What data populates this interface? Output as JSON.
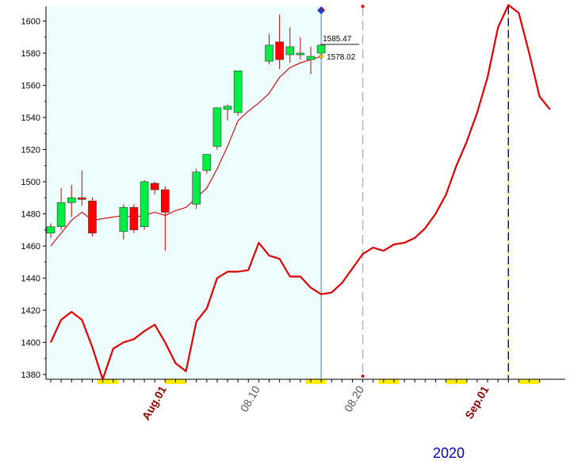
{
  "chart_data": {
    "type": "candlestick",
    "ylim": [
      1376,
      1610
    ],
    "yticks": [
      1380,
      1400,
      1420,
      1440,
      1460,
      1480,
      1500,
      1520,
      1540,
      1560,
      1580,
      1600
    ],
    "x_range_days": [
      0,
      47
    ],
    "x_labels": [
      {
        "text": "Aug.01",
        "day": 11,
        "color": "#8b0000",
        "bold": true
      },
      {
        "text": "08.10",
        "day": 20,
        "color": "#555555",
        "bold": false
      },
      {
        "text": "08.20",
        "day": 30,
        "color": "#555555",
        "bold": false
      },
      {
        "text": "Sep.01",
        "day": 42,
        "color": "#8b0000",
        "bold": true
      }
    ],
    "year_label": "2020",
    "year_color": "#0000cc",
    "highlight_span": [
      0,
      26
    ],
    "current_day": 26,
    "forecast_day": 30,
    "future_day": 44,
    "price_labels": [
      {
        "text": "1585.47",
        "value": 1585.47
      },
      {
        "text": "1578.02",
        "value": 1578.02
      }
    ],
    "weekend_markers": [
      [
        4.5,
        6.5
      ],
      [
        11,
        13
      ],
      [
        24.5,
        26.5
      ],
      [
        31.5,
        33.5
      ],
      [
        38,
        40
      ],
      [
        45,
        47
      ]
    ],
    "colors": {
      "up": "#00ee44",
      "down": "#ff0000",
      "ma": "#cc0000",
      "line": "#dd0000",
      "highlight": "#eefdfd",
      "marker": "#ffee00"
    },
    "candles": [
      {
        "day": 0,
        "open": 1468,
        "high": 1474,
        "low": 1465,
        "close": 1472
      },
      {
        "day": 1,
        "open": 1472,
        "high": 1496,
        "low": 1470,
        "close": 1487
      },
      {
        "day": 2,
        "open": 1487,
        "high": 1498,
        "low": 1478,
        "close": 1490
      },
      {
        "day": 3,
        "open": 1490,
        "high": 1507,
        "low": 1485,
        "close": 1489
      },
      {
        "day": 4,
        "open": 1488,
        "high": 1490,
        "low": 1466,
        "close": 1468
      },
      {
        "day": 7,
        "open": 1469,
        "high": 1486,
        "low": 1464,
        "close": 1484
      },
      {
        "day": 8,
        "open": 1484,
        "high": 1486,
        "low": 1468,
        "close": 1470
      },
      {
        "day": 9,
        "open": 1472,
        "high": 1501,
        "low": 1470,
        "close": 1500
      },
      {
        "day": 10,
        "open": 1499,
        "high": 1500,
        "low": 1492,
        "close": 1495
      },
      {
        "day": 11,
        "open": 1495,
        "high": 1497,
        "low": 1457,
        "close": 1481
      },
      {
        "day": 14,
        "open": 1486,
        "high": 1508,
        "low": 1483,
        "close": 1506
      },
      {
        "day": 15,
        "open": 1507,
        "high": 1517,
        "low": 1505,
        "close": 1517
      },
      {
        "day": 16,
        "open": 1522,
        "high": 1546,
        "low": 1520,
        "close": 1546
      },
      {
        "day": 17,
        "open": 1545,
        "high": 1548,
        "low": 1538,
        "close": 1547
      },
      {
        "day": 18,
        "open": 1543,
        "high": 1568,
        "low": 1541,
        "close": 1569
      },
      {
        "day": 21,
        "open": 1575,
        "high": 1592,
        "low": 1573,
        "close": 1585
      },
      {
        "day": 22,
        "open": 1587,
        "high": 1604,
        "low": 1570,
        "close": 1576
      },
      {
        "day": 23,
        "open": 1579,
        "high": 1596,
        "low": 1574,
        "close": 1584
      },
      {
        "day": 24,
        "open": 1579,
        "high": 1590,
        "low": 1576,
        "close": 1580
      },
      {
        "day": 25,
        "open": 1576,
        "high": 1584,
        "low": 1567,
        "close": 1578
      },
      {
        "day": 26,
        "open": 1580,
        "high": 1586,
        "low": 1577,
        "close": 1585
      }
    ],
    "moving_average": [
      [
        0,
        1460
      ],
      [
        1,
        1468
      ],
      [
        2,
        1476
      ],
      [
        3,
        1481
      ],
      [
        4,
        1476
      ],
      [
        5,
        1477
      ],
      [
        6,
        1478
      ],
      [
        7,
        1479
      ],
      [
        8,
        1478
      ],
      [
        9,
        1479
      ],
      [
        10,
        1481
      ],
      [
        11,
        1479
      ],
      [
        12,
        1482
      ],
      [
        13,
        1484
      ],
      [
        14,
        1490
      ],
      [
        15,
        1496
      ],
      [
        16,
        1508
      ],
      [
        17,
        1522
      ],
      [
        18,
        1538
      ],
      [
        19,
        1544
      ],
      [
        20,
        1549
      ],
      [
        21,
        1555
      ],
      [
        22,
        1565
      ],
      [
        23,
        1571
      ],
      [
        24,
        1574
      ],
      [
        25,
        1576
      ],
      [
        26,
        1578
      ]
    ],
    "forecast_line": [
      [
        0,
        1400
      ],
      [
        1,
        1414
      ],
      [
        2,
        1419
      ],
      [
        3,
        1414
      ],
      [
        4,
        1397
      ],
      [
        5,
        1377
      ],
      [
        6,
        1396
      ],
      [
        7,
        1400
      ],
      [
        8,
        1402
      ],
      [
        9,
        1407
      ],
      [
        10,
        1411
      ],
      [
        11,
        1400
      ],
      [
        12,
        1387
      ],
      [
        13,
        1382
      ],
      [
        14,
        1413
      ],
      [
        15,
        1421
      ],
      [
        16,
        1440
      ],
      [
        17,
        1444
      ],
      [
        18,
        1444
      ],
      [
        19,
        1445
      ],
      [
        20,
        1462
      ],
      [
        21,
        1454
      ],
      [
        22,
        1452
      ],
      [
        23,
        1441
      ],
      [
        24,
        1441
      ],
      [
        25,
        1434
      ],
      [
        26,
        1430
      ],
      [
        27,
        1431
      ],
      [
        28,
        1437
      ],
      [
        29,
        1446
      ],
      [
        30,
        1455
      ],
      [
        31,
        1459
      ],
      [
        32,
        1457
      ],
      [
        33,
        1461
      ],
      [
        34,
        1462
      ],
      [
        35,
        1465
      ],
      [
        36,
        1471
      ],
      [
        37,
        1480
      ],
      [
        38,
        1492
      ],
      [
        39,
        1510
      ],
      [
        40,
        1525
      ],
      [
        41,
        1543
      ],
      [
        42,
        1565
      ],
      [
        43,
        1596
      ],
      [
        44,
        1610
      ],
      [
        45,
        1605
      ],
      [
        46,
        1580
      ],
      [
        47,
        1553
      ],
      [
        48,
        1545
      ]
    ]
  }
}
